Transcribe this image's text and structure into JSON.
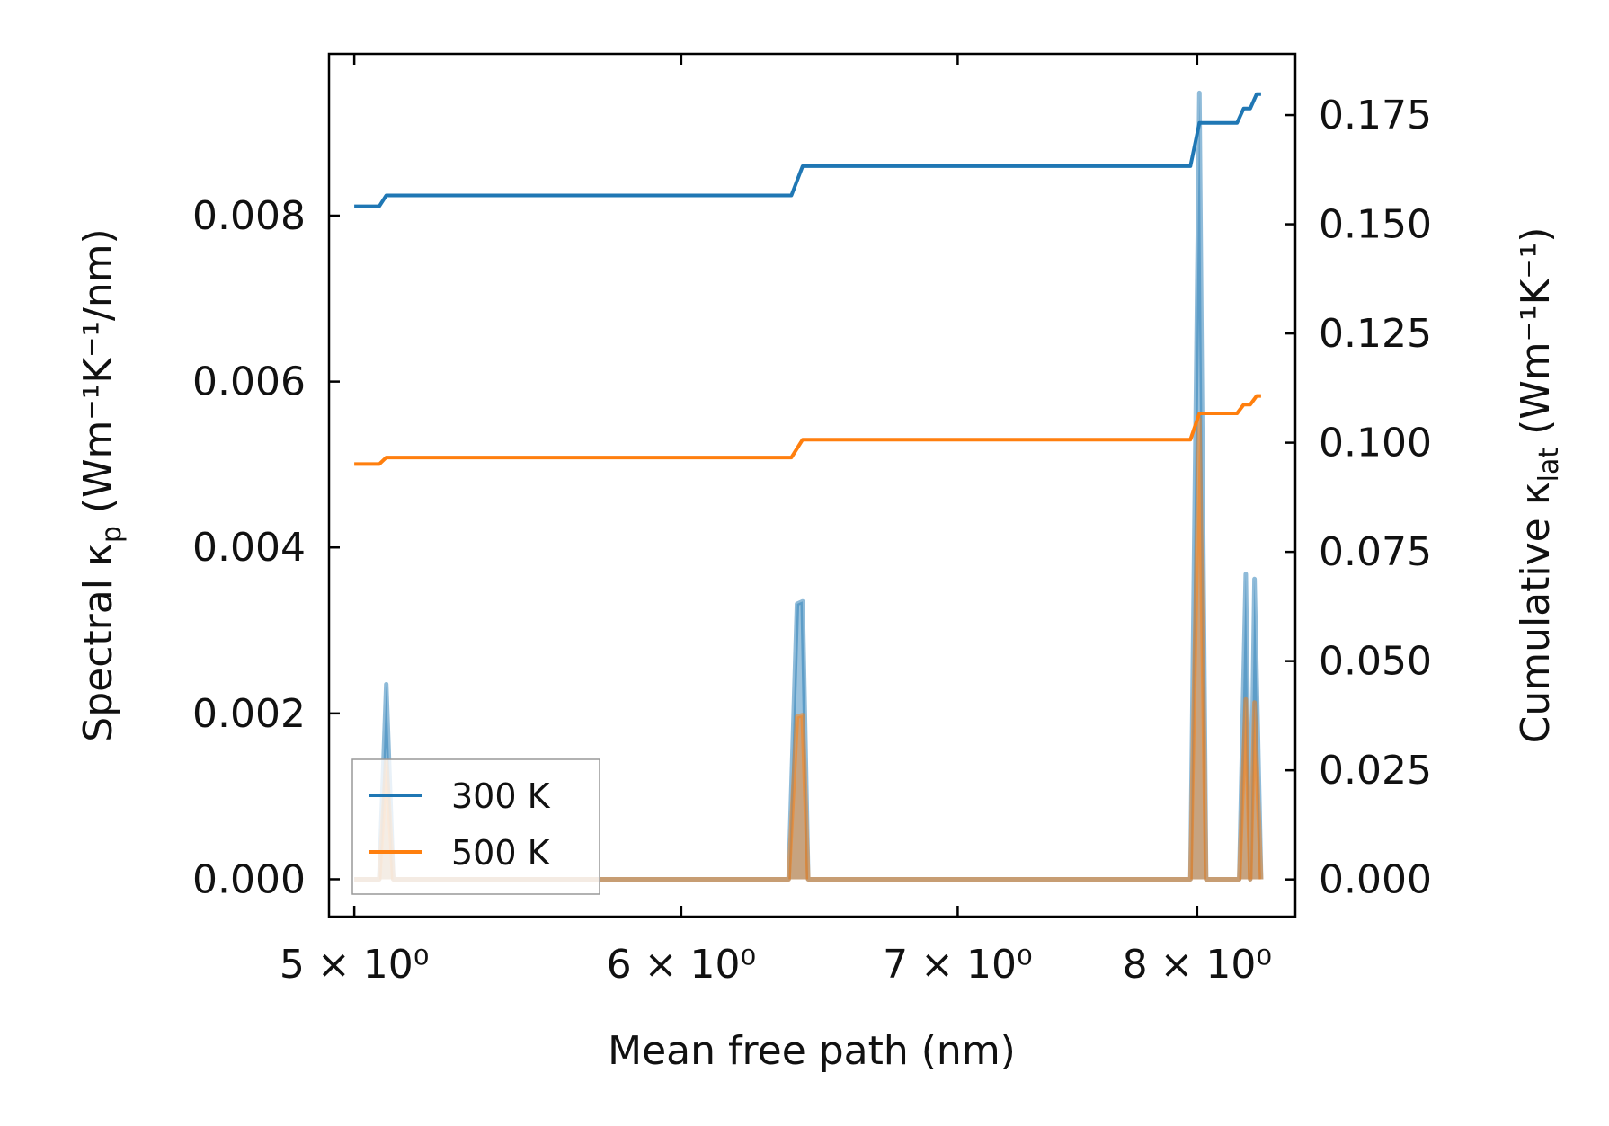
{
  "chart_data": {
    "type": "line",
    "xlabel": "Mean free path (nm)",
    "ylabel_left": "Spectral κ",
    "ylabel_left_sub": "p",
    "ylabel_left_unit": " (Wm⁻¹K⁻¹/nm)",
    "ylabel_right": "Cumulative κ",
    "ylabel_right_sub": "lat",
    "ylabel_right_unit": " (Wm⁻¹K⁻¹)",
    "x_scale": "log",
    "xlim": [
      4.93,
      8.45
    ],
    "ylim_left": [
      -0.00045,
      0.00995
    ],
    "ylim_right": [
      -0.0085,
      0.189
    ],
    "x_ticks": [
      {
        "value": 5,
        "label": "5 × 10⁰"
      },
      {
        "value": 6,
        "label": "6 × 10⁰"
      },
      {
        "value": 7,
        "label": "7 × 10⁰"
      },
      {
        "value": 8,
        "label": "8 × 10⁰"
      }
    ],
    "y_ticks_left": [
      {
        "value": 0.0,
        "label": "0.000"
      },
      {
        "value": 0.002,
        "label": "0.002"
      },
      {
        "value": 0.004,
        "label": "0.004"
      },
      {
        "value": 0.006,
        "label": "0.006"
      },
      {
        "value": 0.008,
        "label": "0.008"
      }
    ],
    "y_ticks_right": [
      {
        "value": 0.0,
        "label": "0.000"
      },
      {
        "value": 0.025,
        "label": "0.025"
      },
      {
        "value": 0.05,
        "label": "0.050"
      },
      {
        "value": 0.075,
        "label": "0.075"
      },
      {
        "value": 0.1,
        "label": "0.100"
      },
      {
        "value": 0.125,
        "label": "0.125"
      },
      {
        "value": 0.15,
        "label": "0.150"
      },
      {
        "value": 0.175,
        "label": "0.175"
      }
    ],
    "legend": {
      "position": "lower-left"
    },
    "series": [
      {
        "name": "300 K",
        "color": "#1f77b4",
        "cumulative": [
          [
            5.0,
            0.1541
          ],
          [
            5.07,
            0.1541
          ],
          [
            5.09,
            0.1566
          ],
          [
            6.38,
            0.1566
          ],
          [
            6.42,
            0.1633
          ],
          [
            7.97,
            0.1633
          ],
          [
            8.01,
            0.1732
          ],
          [
            8.18,
            0.1732
          ],
          [
            8.21,
            0.1765
          ],
          [
            8.24,
            0.1765
          ],
          [
            8.27,
            0.1798
          ],
          [
            8.29,
            0.1798
          ]
        ],
        "spectral": [
          [
            5.0,
            0.0
          ],
          [
            5.07,
            0.0
          ],
          [
            5.09,
            0.00235
          ],
          [
            5.11,
            0.0
          ],
          [
            6.37,
            0.0
          ],
          [
            6.4,
            0.00332
          ],
          [
            6.42,
            0.00335
          ],
          [
            6.44,
            0.0
          ],
          [
            7.97,
            0.0
          ],
          [
            8.01,
            0.00948
          ],
          [
            8.04,
            0.0
          ],
          [
            8.19,
            0.0
          ],
          [
            8.22,
            0.00368
          ],
          [
            8.24,
            0.0
          ],
          [
            8.26,
            0.00362
          ],
          [
            8.29,
            0.0
          ]
        ]
      },
      {
        "name": "500 K",
        "color": "#ff7f0e",
        "cumulative": [
          [
            5.0,
            0.0951
          ],
          [
            5.07,
            0.0951
          ],
          [
            5.09,
            0.0966
          ],
          [
            6.38,
            0.0966
          ],
          [
            6.42,
            0.1007
          ],
          [
            7.97,
            0.1007
          ],
          [
            8.01,
            0.1067
          ],
          [
            8.18,
            0.1067
          ],
          [
            8.21,
            0.1087
          ],
          [
            8.24,
            0.1087
          ],
          [
            8.27,
            0.1107
          ],
          [
            8.29,
            0.1107
          ]
        ],
        "spectral": [
          [
            5.0,
            0.0
          ],
          [
            5.07,
            0.0
          ],
          [
            5.09,
            0.00142
          ],
          [
            5.11,
            0.0
          ],
          [
            6.37,
            0.0
          ],
          [
            6.4,
            0.00196
          ],
          [
            6.42,
            0.00198
          ],
          [
            6.44,
            0.0
          ],
          [
            7.97,
            0.0
          ],
          [
            8.01,
            0.00555
          ],
          [
            8.04,
            0.0
          ],
          [
            8.19,
            0.0
          ],
          [
            8.22,
            0.00217
          ],
          [
            8.24,
            0.0
          ],
          [
            8.26,
            0.00213
          ],
          [
            8.29,
            0.0
          ]
        ]
      }
    ]
  }
}
